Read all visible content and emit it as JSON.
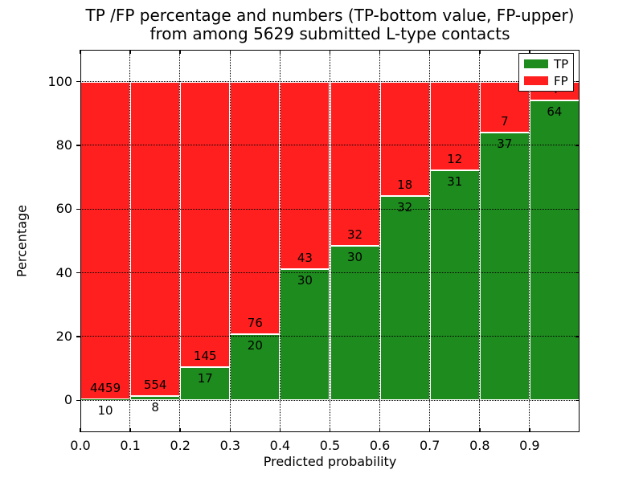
{
  "title": {
    "line1": "TP /FP percentage and numbers (TP-bottom value, FP-upper)",
    "line2": "from among 5629 submitted L-type contacts"
  },
  "axes": {
    "xlabel": "Predicted probability",
    "ylabel": "Percentage",
    "xlim": [
      0.0,
      1.0
    ],
    "ylim": [
      -10,
      110
    ],
    "x_tick_values": [
      0.0,
      0.1,
      0.2,
      0.3,
      0.4,
      0.5,
      0.6,
      0.7,
      0.8,
      0.9
    ],
    "x_tick_labels": [
      "0.0",
      "0.1",
      "0.2",
      "0.3",
      "0.4",
      "0.5",
      "0.6",
      "0.7",
      "0.8",
      "0.9"
    ],
    "y_tick_values": [
      0,
      20,
      40,
      60,
      80,
      100
    ],
    "y_tick_labels": [
      "0",
      "20",
      "40",
      "60",
      "80",
      "100"
    ],
    "grid_style": "dotted"
  },
  "legend": {
    "position": "upper right",
    "entries": [
      {
        "label": "TP",
        "color": "#1e8b1e"
      },
      {
        "label": "FP",
        "color": "#ff1f1f"
      }
    ]
  },
  "colors": {
    "tp": "#1e8b1e",
    "fp": "#ff1f1f",
    "bar_edge": "#ffffff",
    "grid": "#000000",
    "text": "#000000",
    "background": "#ffffff"
  },
  "chart_data": {
    "type": "bar",
    "stacked": true,
    "normalized": "percent_of_bin_total",
    "title": "TP /FP percentage and numbers (TP-bottom value, FP-upper) from among 5629 submitted L-type contacts",
    "xlabel": "Predicted probability",
    "ylabel": "Percentage",
    "xlim": [
      0.0,
      1.0
    ],
    "ylim": [
      -10,
      110
    ],
    "bin_width": 0.1,
    "total_submitted": 5629,
    "grid": "dotted",
    "legend_position": "upper right",
    "series_order_note": "TP drawn at bottom (green), FP stacked above (red); each bin normalized to 100%",
    "bins": [
      {
        "x_start": 0.0,
        "x_end": 0.1,
        "tp": 10,
        "fp": 4459,
        "tp_pct": 0.22
      },
      {
        "x_start": 0.1,
        "x_end": 0.2,
        "tp": 8,
        "fp": 554,
        "tp_pct": 1.42
      },
      {
        "x_start": 0.2,
        "x_end": 0.3,
        "tp": 17,
        "fp": 145,
        "tp_pct": 10.49
      },
      {
        "x_start": 0.3,
        "x_end": 0.4,
        "tp": 20,
        "fp": 76,
        "tp_pct": 20.83
      },
      {
        "x_start": 0.4,
        "x_end": 0.5,
        "tp": 30,
        "fp": 43,
        "tp_pct": 41.1
      },
      {
        "x_start": 0.5,
        "x_end": 0.6,
        "tp": 30,
        "fp": 32,
        "tp_pct": 48.39
      },
      {
        "x_start": 0.6,
        "x_end": 0.7,
        "tp": 32,
        "fp": 18,
        "tp_pct": 64.0
      },
      {
        "x_start": 0.7,
        "x_end": 0.8,
        "tp": 31,
        "fp": 12,
        "tp_pct": 72.09
      },
      {
        "x_start": 0.8,
        "x_end": 0.9,
        "tp": 37,
        "fp": 7,
        "tp_pct": 84.09
      },
      {
        "x_start": 0.9,
        "x_end": 1.0,
        "tp": 64,
        "fp": 4,
        "tp_pct": 94.12,
        "fp_label_occluded_by_legend": true
      }
    ]
  }
}
